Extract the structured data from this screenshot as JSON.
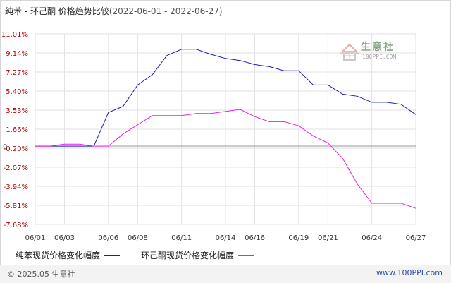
{
  "title": {
    "main": "纯苯 - 环己酮 价格趋势比较",
    "range": "(2022-06-01 - 2022-06-27)"
  },
  "watermark": {
    "name": "生意社",
    "url": "100PPI.COM"
  },
  "footer": {
    "copyright": "© 2025.05 生意社",
    "url": "www.100PPI.com"
  },
  "colors": {
    "series1": "#1a1ab4",
    "series2": "#e61ee6",
    "axis_labels": "#b30000",
    "grid": "#e2e2e2"
  },
  "chart_data": {
    "type": "line",
    "title": "纯苯 - 环己酮 价格趋势比较",
    "x": [
      "06/01",
      "06/02",
      "06/03",
      "06/04",
      "06/05",
      "06/06",
      "06/07",
      "06/08",
      "06/09",
      "06/10",
      "06/11",
      "06/12",
      "06/13",
      "06/14",
      "06/15",
      "06/16",
      "06/17",
      "06/18",
      "06/19",
      "06/20",
      "06/21",
      "06/22",
      "06/23",
      "06/24",
      "06/25",
      "06/26",
      "06/27"
    ],
    "x_tick_labels": [
      "06/01",
      "06/03",
      "06/06",
      "06/08",
      "06/11",
      "06/14",
      "06/16",
      "06/19",
      "06/21",
      "06/24",
      "06/27"
    ],
    "y_tick_labels": [
      "11.01%",
      "9.14%",
      "7.27%",
      "5.40%",
      "3.53%",
      "1.66%",
      "-0.20%",
      "-2.07%",
      "-3.94%",
      "-5.81%",
      "-7.68%"
    ],
    "zero_label": "0",
    "ylim": [
      -7.68,
      11.01
    ],
    "grid": true,
    "legend_position": "bottom",
    "series": [
      {
        "name": "纯苯现货价格变化幅度",
        "values": [
          0,
          0,
          0,
          0,
          0,
          3.3,
          3.9,
          6.0,
          7.0,
          8.9,
          9.5,
          9.5,
          9.0,
          8.6,
          8.4,
          8.0,
          7.8,
          7.4,
          7.4,
          6.0,
          6.0,
          5.1,
          4.9,
          4.3,
          4.3,
          4.1,
          3.1
        ],
        "color": "#1a1ab4"
      },
      {
        "name": "环己酮现货价格变化幅度",
        "values": [
          0,
          0,
          0.2,
          0.2,
          0,
          0,
          1.2,
          2.1,
          3.0,
          3.0,
          3.0,
          3.2,
          3.2,
          3.4,
          3.6,
          2.9,
          2.4,
          2.4,
          2.0,
          1.0,
          0.3,
          -1.2,
          -3.7,
          -5.6,
          -5.6,
          -5.6,
          -6.1
        ],
        "color": "#e61ee6"
      }
    ]
  }
}
